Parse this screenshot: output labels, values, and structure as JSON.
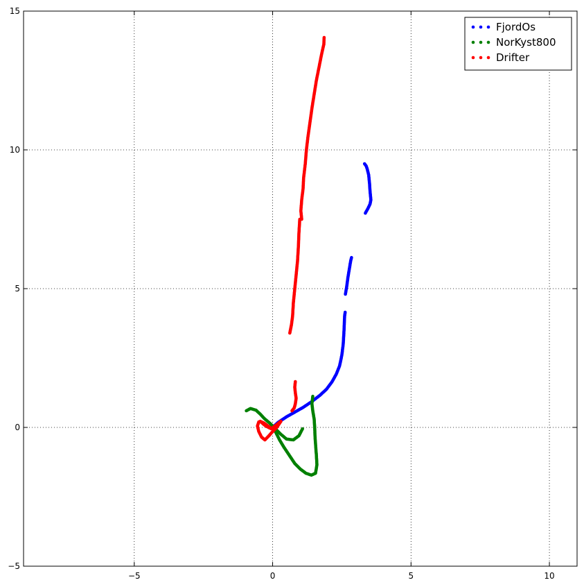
{
  "chart_data": {
    "type": "scatter",
    "title": "",
    "xlabel": "",
    "ylabel": "",
    "xlim": [
      -9,
      11
    ],
    "ylim": [
      -5,
      15
    ],
    "x_ticks": [
      -5,
      0,
      5,
      10
    ],
    "y_ticks": [
      -5,
      0,
      5,
      10,
      15
    ],
    "grid": true,
    "legend_position": "top-right",
    "series": [
      {
        "name": "FjordOs",
        "color": "#0000ff",
        "segments": [
          [
            [
              0,
              0
            ],
            [
              0.2,
              0.18
            ],
            [
              0.5,
              0.38
            ],
            [
              0.8,
              0.55
            ],
            [
              1.1,
              0.72
            ],
            [
              1.4,
              0.92
            ],
            [
              1.7,
              1.15
            ],
            [
              1.95,
              1.38
            ],
            [
              2.15,
              1.65
            ],
            [
              2.3,
              1.92
            ],
            [
              2.42,
              2.22
            ],
            [
              2.5,
              2.6
            ],
            [
              2.55,
              3.0
            ],
            [
              2.58,
              3.5
            ],
            [
              2.6,
              4.0
            ],
            [
              2.62,
              4.15
            ]
          ],
          [
            [
              2.63,
              4.8
            ],
            [
              2.68,
              5.1
            ],
            [
              2.72,
              5.4
            ],
            [
              2.77,
              5.7
            ],
            [
              2.82,
              6.0
            ],
            [
              2.85,
              6.12
            ]
          ],
          [
            [
              3.35,
              7.72
            ],
            [
              3.45,
              7.9
            ],
            [
              3.52,
              8.05
            ],
            [
              3.55,
              8.2
            ],
            [
              3.52,
              8.5
            ],
            [
              3.5,
              8.8
            ],
            [
              3.47,
              9.1
            ],
            [
              3.42,
              9.3
            ],
            [
              3.38,
              9.42
            ],
            [
              3.32,
              9.5
            ]
          ]
        ]
      },
      {
        "name": "NorKyst800",
        "color": "#008000",
        "segments": [
          [
            [
              -0.95,
              0.6
            ],
            [
              -0.8,
              0.68
            ],
            [
              -0.6,
              0.62
            ],
            [
              -0.45,
              0.48
            ],
            [
              -0.3,
              0.32
            ],
            [
              -0.1,
              0.15
            ],
            [
              0.1,
              -0.05
            ],
            [
              0.3,
              -0.25
            ],
            [
              0.5,
              -0.42
            ],
            [
              0.75,
              -0.45
            ],
            [
              0.95,
              -0.3
            ],
            [
              1.08,
              -0.05
            ]
          ],
          [
            [
              0.1,
              -0.15
            ],
            [
              0.25,
              -0.45
            ],
            [
              0.4,
              -0.7
            ],
            [
              0.6,
              -1.0
            ],
            [
              0.8,
              -1.3
            ],
            [
              1.0,
              -1.5
            ],
            [
              1.2,
              -1.65
            ],
            [
              1.4,
              -1.72
            ],
            [
              1.55,
              -1.65
            ],
            [
              1.6,
              -1.35
            ],
            [
              1.58,
              -1.0
            ],
            [
              1.55,
              -0.6
            ],
            [
              1.53,
              -0.3
            ],
            [
              1.52,
              0.0
            ],
            [
              1.5,
              0.3
            ],
            [
              1.45,
              0.6
            ],
            [
              1.42,
              0.85
            ],
            [
              1.45,
              1.12
            ]
          ]
        ]
      },
      {
        "name": "Drifter",
        "color": "#ff0000",
        "segments": [
          [
            [
              -0.5,
              0.2
            ],
            [
              -0.55,
              0.05
            ],
            [
              -0.5,
              -0.15
            ],
            [
              -0.4,
              -0.35
            ],
            [
              -0.28,
              -0.45
            ],
            [
              -0.15,
              -0.32
            ],
            [
              0.0,
              -0.15
            ],
            [
              0.15,
              0.0
            ],
            [
              0.3,
              0.22
            ],
            [
              0.15,
              0.1
            ],
            [
              -0.05,
              -0.05
            ],
            [
              -0.25,
              0.05
            ],
            [
              -0.45,
              0.22
            ],
            [
              -0.3,
              0.15
            ],
            [
              -0.1,
              0.0
            ]
          ],
          [
            [
              0.7,
              0.6
            ],
            [
              0.78,
              0.7
            ],
            [
              0.82,
              0.85
            ],
            [
              0.85,
              1.05
            ],
            [
              0.82,
              1.25
            ],
            [
              0.8,
              1.45
            ],
            [
              0.82,
              1.65
            ]
          ],
          [
            [
              0.62,
              3.4
            ],
            [
              0.65,
              3.55
            ],
            [
              0.68,
              3.7
            ],
            [
              0.72,
              4.0
            ],
            [
              0.75,
              4.5
            ],
            [
              0.8,
              5.0
            ],
            [
              0.85,
              5.5
            ],
            [
              0.9,
              6.0
            ],
            [
              0.93,
              6.5
            ],
            [
              0.95,
              7.0
            ],
            [
              0.98,
              7.5
            ],
            [
              1.05,
              7.5
            ],
            [
              1.02,
              7.8
            ],
            [
              1.05,
              8.2
            ],
            [
              1.1,
              8.6
            ],
            [
              1.12,
              9.0
            ],
            [
              1.18,
              9.5
            ],
            [
              1.22,
              10.0
            ],
            [
              1.28,
              10.5
            ],
            [
              1.35,
              11.0
            ],
            [
              1.42,
              11.5
            ],
            [
              1.5,
              12.0
            ],
            [
              1.58,
              12.5
            ],
            [
              1.68,
              13.0
            ],
            [
              1.78,
              13.5
            ],
            [
              1.85,
              13.8
            ],
            [
              1.86,
              14.05
            ]
          ]
        ]
      }
    ]
  }
}
